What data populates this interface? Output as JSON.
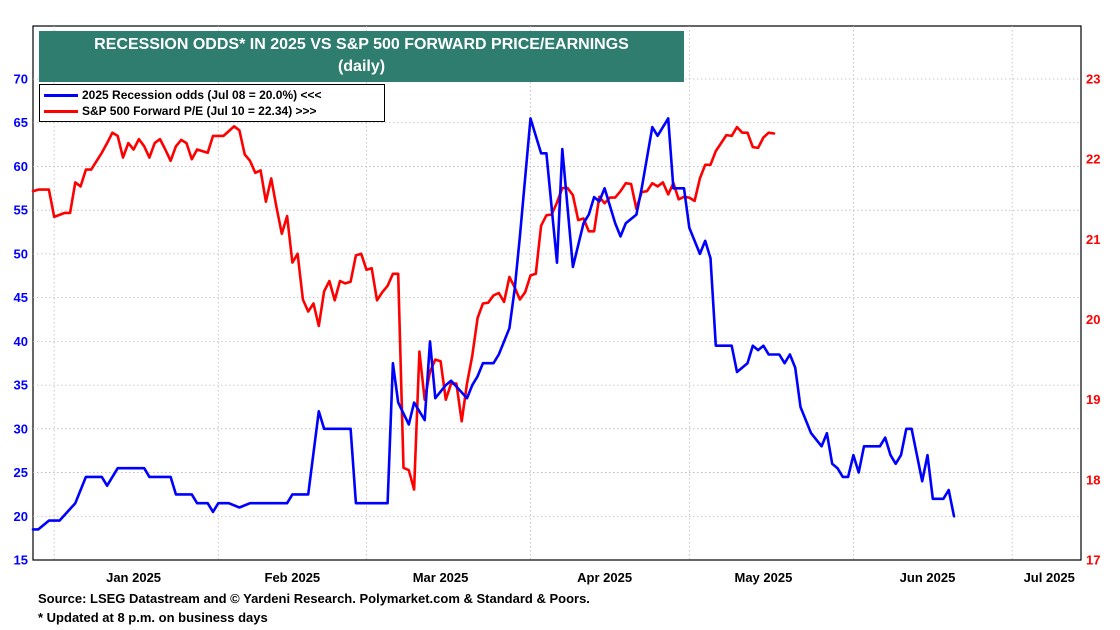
{
  "title": {
    "line1": "RECESSION ODDS* IN 2025 VS S&P 500 FORWARD PRICE/EARNINGS",
    "line2": "(daily)"
  },
  "legend": [
    {
      "label": "2025 Recession odds (Jul 08 = 20.0%) <<<",
      "color": "#0000ff"
    },
    {
      "label": "S&P 500 Forward P/E (Jul 10 = 22.34) >>>",
      "color": "#ff0000"
    }
  ],
  "footer": {
    "source": "Source: LSEG Datastream and © Yardeni Research. Polymarket.com & Standard & Poors.",
    "note": "* Updated at 8 p.m. on business days"
  },
  "colors": {
    "recession": "#0000ff",
    "pe": "#ff0000",
    "title_bg": "#2e7d6e",
    "grid": "#b8b8b8"
  },
  "chart_data": {
    "type": "line",
    "x_unit": "days since 2025-01-01",
    "x_range": [
      -4,
      194
    ],
    "x_tick_labels": [
      {
        "label": "Jan 2025",
        "day": 15
      },
      {
        "label": "Feb 2025",
        "day": 45
      },
      {
        "label": "Mar 2025",
        "day": 73
      },
      {
        "label": "Apr 2025",
        "day": 104
      },
      {
        "label": "May 2025",
        "day": 134
      },
      {
        "label": "Jun 2025",
        "day": 165
      },
      {
        "label": "Jul 2025",
        "day": 188
      }
    ],
    "x_gridlines": [
      0,
      31,
      59,
      90,
      120,
      151,
      181
    ],
    "y_left": {
      "min": 15,
      "max": 70,
      "ticks": [
        15,
        20,
        25,
        30,
        35,
        40,
        45,
        50,
        55,
        60,
        65,
        70
      ]
    },
    "y_right": {
      "min": 17,
      "max": 23,
      "ticks": [
        17,
        18,
        19,
        20,
        21,
        22,
        23
      ]
    },
    "grid": true,
    "legend_position": "top-left",
    "series": [
      {
        "name": "2025 Recession odds (Jul 08 = 20.0%)",
        "axis": "left",
        "points": [
          [
            -4,
            18.5
          ],
          [
            -3,
            18.5
          ],
          [
            -1,
            19.5
          ],
          [
            1,
            19.5
          ],
          [
            4,
            21.5
          ],
          [
            6,
            24.5
          ],
          [
            9,
            24.5
          ],
          [
            10,
            23.5
          ],
          [
            12,
            25.5
          ],
          [
            17,
            25.5
          ],
          [
            18,
            24.5
          ],
          [
            22,
            24.5
          ],
          [
            23,
            22.5
          ],
          [
            26,
            22.5
          ],
          [
            27,
            21.5
          ],
          [
            29,
            21.5
          ],
          [
            30,
            20.5
          ],
          [
            31,
            21.5
          ],
          [
            33,
            21.5
          ],
          [
            35,
            21
          ],
          [
            37,
            21.5
          ],
          [
            44,
            21.5
          ],
          [
            45,
            22.5
          ],
          [
            48,
            22.5
          ],
          [
            50,
            32
          ],
          [
            51,
            30
          ],
          [
            56,
            30
          ],
          [
            57,
            21.5
          ],
          [
            63,
            21.5
          ],
          [
            64,
            37.5
          ],
          [
            65,
            33
          ],
          [
            67,
            30.5
          ],
          [
            68,
            33
          ],
          [
            70,
            31
          ],
          [
            71,
            40
          ],
          [
            72,
            33.5
          ],
          [
            74,
            35
          ],
          [
            75,
            35.5
          ],
          [
            78,
            33.5
          ],
          [
            79,
            35
          ],
          [
            80,
            36
          ],
          [
            81,
            37.5
          ],
          [
            83,
            37.5
          ],
          [
            84,
            38.5
          ],
          [
            86,
            41.5
          ],
          [
            87,
            46
          ],
          [
            88,
            52
          ],
          [
            90,
            65.5
          ],
          [
            92,
            61.5
          ],
          [
            93,
            61.5
          ],
          [
            95,
            49
          ],
          [
            96,
            62
          ],
          [
            98,
            48.5
          ],
          [
            100,
            53.5
          ],
          [
            101,
            54.5
          ],
          [
            102,
            56.5
          ],
          [
            103,
            56
          ],
          [
            104,
            57.5
          ],
          [
            106,
            53.5
          ],
          [
            107,
            52
          ],
          [
            108,
            53.5
          ],
          [
            110,
            54.5
          ],
          [
            111,
            57.5
          ],
          [
            113,
            64.5
          ],
          [
            114,
            63.5
          ],
          [
            116,
            65.5
          ],
          [
            117,
            57.5
          ],
          [
            119,
            57.5
          ],
          [
            120,
            53
          ],
          [
            122,
            50
          ],
          [
            123,
            51.5
          ],
          [
            124,
            49.5
          ],
          [
            125,
            39.5
          ],
          [
            128,
            39.5
          ],
          [
            129,
            36.5
          ],
          [
            131,
            37.5
          ],
          [
            132,
            39.5
          ],
          [
            133,
            39
          ],
          [
            134,
            39.5
          ],
          [
            135,
            38.5
          ],
          [
            137,
            38.5
          ],
          [
            138,
            37.5
          ],
          [
            139,
            38.5
          ],
          [
            140,
            37
          ],
          [
            141,
            32.5
          ],
          [
            143,
            29.5
          ],
          [
            145,
            28
          ],
          [
            146,
            29.5
          ],
          [
            147,
            26
          ],
          [
            148,
            25.5
          ],
          [
            149,
            24.5
          ],
          [
            150,
            24.5
          ],
          [
            151,
            27
          ],
          [
            152,
            25
          ],
          [
            153,
            28
          ],
          [
            156,
            28
          ],
          [
            157,
            29
          ],
          [
            158,
            27
          ],
          [
            159,
            26
          ],
          [
            160,
            27
          ],
          [
            161,
            30
          ],
          [
            162,
            30
          ],
          [
            164,
            24
          ],
          [
            165,
            27
          ],
          [
            166,
            22
          ],
          [
            168,
            22
          ],
          [
            169,
            23
          ],
          [
            170,
            20
          ]
        ]
      },
      {
        "name": "S&P 500 Forward P/E (Jul 10 = 22.34)",
        "axis": "right",
        "points": [
          [
            -4,
            21.6
          ],
          [
            -3,
            21.62
          ],
          [
            -1,
            21.62
          ],
          [
            0,
            21.28
          ],
          [
            2,
            21.33
          ],
          [
            3,
            21.33
          ],
          [
            4,
            21.71
          ],
          [
            5,
            21.66
          ],
          [
            6,
            21.87
          ],
          [
            7,
            21.87
          ],
          [
            9,
            22.08
          ],
          [
            10,
            22.2
          ],
          [
            11,
            22.33
          ],
          [
            12,
            22.29
          ],
          [
            13,
            22.02
          ],
          [
            14,
            22.2
          ],
          [
            15,
            22.12
          ],
          [
            16,
            22.25
          ],
          [
            17,
            22.16
          ],
          [
            18,
            22.02
          ],
          [
            19,
            22.2
          ],
          [
            20,
            22.25
          ],
          [
            21,
            22.12
          ],
          [
            22,
            21.98
          ],
          [
            23,
            22.16
          ],
          [
            24,
            22.24
          ],
          [
            25,
            22.2
          ],
          [
            26,
            22
          ],
          [
            27,
            22.12
          ],
          [
            29,
            22.08
          ],
          [
            30,
            22.29
          ],
          [
            31,
            22.29
          ],
          [
            32,
            22.29
          ],
          [
            33,
            22.35
          ],
          [
            34,
            22.41
          ],
          [
            35,
            22.36
          ],
          [
            36,
            22.06
          ],
          [
            37,
            21.98
          ],
          [
            38,
            21.83
          ],
          [
            39,
            21.86
          ],
          [
            40,
            21.47
          ],
          [
            41,
            21.76
          ],
          [
            42,
            21.4
          ],
          [
            43,
            21.07
          ],
          [
            44,
            21.29
          ],
          [
            45,
            20.71
          ],
          [
            46,
            20.82
          ],
          [
            47,
            20.25
          ],
          [
            48,
            20.1
          ],
          [
            49,
            20.2
          ],
          [
            50,
            19.92
          ],
          [
            51,
            20.35
          ],
          [
            52,
            20.48
          ],
          [
            53,
            20.24
          ],
          [
            54,
            20.48
          ],
          [
            55,
            20.45
          ],
          [
            56,
            20.47
          ],
          [
            57,
            20.8
          ],
          [
            58,
            20.82
          ],
          [
            59,
            20.62
          ],
          [
            60,
            20.64
          ],
          [
            61,
            20.24
          ],
          [
            62,
            20.34
          ],
          [
            63,
            20.42
          ],
          [
            64,
            20.57
          ],
          [
            65,
            20.57
          ],
          [
            66,
            18.15
          ],
          [
            67,
            18.12
          ],
          [
            68,
            17.88
          ],
          [
            69,
            19.6
          ],
          [
            70,
            19.0
          ],
          [
            71,
            19.35
          ],
          [
            72,
            19.5
          ],
          [
            73,
            19.48
          ],
          [
            74,
            19.0
          ],
          [
            75,
            19.2
          ],
          [
            76,
            19.2
          ],
          [
            77,
            18.73
          ],
          [
            78,
            19.2
          ],
          [
            79,
            19.55
          ],
          [
            80,
            20.02
          ],
          [
            81,
            20.2
          ],
          [
            82,
            20.21
          ],
          [
            83,
            20.3
          ],
          [
            84,
            20.33
          ],
          [
            85,
            20.22
          ],
          [
            86,
            20.53
          ],
          [
            87,
            20.4
          ],
          [
            88,
            20.25
          ],
          [
            89,
            20.34
          ],
          [
            90,
            20.55
          ],
          [
            91,
            20.57
          ],
          [
            92,
            21.17
          ],
          [
            93,
            21.3
          ],
          [
            94,
            21.31
          ],
          [
            95,
            21.46
          ],
          [
            96,
            21.64
          ],
          [
            97,
            21.64
          ],
          [
            98,
            21.55
          ],
          [
            99,
            21.24
          ],
          [
            100,
            21.26
          ],
          [
            101,
            21.1
          ],
          [
            102,
            21.1
          ],
          [
            103,
            21.53
          ],
          [
            104,
            21.45
          ],
          [
            105,
            21.52
          ],
          [
            106,
            21.52
          ],
          [
            107,
            21.6
          ],
          [
            108,
            21.7
          ],
          [
            109,
            21.69
          ],
          [
            110,
            21.38
          ],
          [
            111,
            21.59
          ],
          [
            112,
            21.6
          ],
          [
            113,
            21.7
          ],
          [
            114,
            21.66
          ],
          [
            115,
            21.71
          ],
          [
            116,
            21.56
          ],
          [
            117,
            21.7
          ],
          [
            118,
            21.5
          ],
          [
            119,
            21.53
          ],
          [
            120,
            21.52
          ],
          [
            121,
            21.48
          ],
          [
            122,
            21.76
          ],
          [
            123,
            21.93
          ],
          [
            124,
            21.93
          ],
          [
            125,
            22.1
          ],
          [
            126,
            22.2
          ],
          [
            127,
            22.3
          ],
          [
            128,
            22.29
          ],
          [
            129,
            22.4
          ],
          [
            130,
            22.33
          ],
          [
            131,
            22.33
          ],
          [
            132,
            22.15
          ],
          [
            133,
            22.14
          ],
          [
            134,
            22.27
          ],
          [
            135,
            22.33
          ],
          [
            136,
            22.32
          ]
        ]
      }
    ]
  }
}
